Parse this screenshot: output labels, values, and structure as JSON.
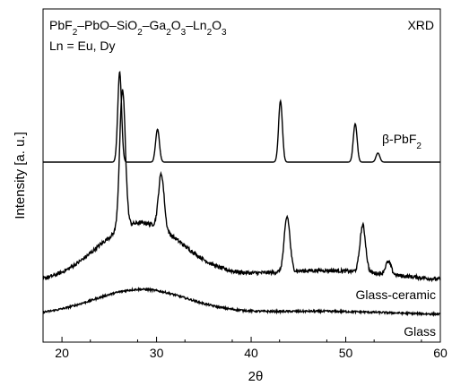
{
  "chart_data": {
    "type": "line",
    "title": "",
    "xlabel": "2θ",
    "ylabel": "Intensity [a. u.]",
    "xlim": [
      18,
      60
    ],
    "x_ticks": [
      20,
      30,
      40,
      50,
      60
    ],
    "y_ticks_shown": false,
    "grid": false,
    "annotations": {
      "composition": "PbF2–PbO–SiO2–Ga2O3–Ln2O3",
      "composition_parts": [
        {
          "t": "PbF",
          "sub": false
        },
        {
          "t": "2",
          "sub": true
        },
        {
          "t": "–PbO–SiO",
          "sub": false
        },
        {
          "t": "2",
          "sub": true
        },
        {
          "t": "–Ga",
          "sub": false
        },
        {
          "t": "2",
          "sub": true
        },
        {
          "t": "O",
          "sub": false
        },
        {
          "t": "3",
          "sub": true
        },
        {
          "t": "–Ln",
          "sub": false
        },
        {
          "t": "2",
          "sub": true
        },
        {
          "t": "O",
          "sub": false
        },
        {
          "t": "3",
          "sub": true
        }
      ],
      "ln_note": "Ln = Eu, Dy",
      "technique": "XRD"
    },
    "series": [
      {
        "name": "β-PbF2",
        "label_parts": [
          {
            "t": "β-PbF",
            "sub": false
          },
          {
            "t": "2",
            "sub": true
          }
        ],
        "baseline": 0.0,
        "broad": [],
        "peaks": [
          {
            "x": 26.1,
            "h": 0.99,
            "w": 0.2
          },
          {
            "x": 30.1,
            "h": 0.36,
            "w": 0.2
          },
          {
            "x": 43.1,
            "h": 0.67,
            "w": 0.2
          },
          {
            "x": 51.0,
            "h": 0.42,
            "w": 0.2
          },
          {
            "x": 53.4,
            "h": 0.1,
            "w": 0.2
          }
        ],
        "noise": 0.0
      },
      {
        "name": "Glass-ceramic",
        "label_parts": [
          {
            "t": "Glass-ceramic",
            "sub": false
          }
        ],
        "baseline": 0.0,
        "broad": [
          {
            "x": 28.3,
            "h": 0.38,
            "w": 4.5
          },
          {
            "x": 47.5,
            "h": 0.08,
            "w": 8.0
          }
        ],
        "peaks": [
          {
            "x": 26.4,
            "h": 0.88,
            "w": 0.3
          },
          {
            "x": 30.5,
            "h": 0.35,
            "w": 0.3
          },
          {
            "x": 43.8,
            "h": 0.35,
            "w": 0.3
          },
          {
            "x": 51.8,
            "h": 0.3,
            "w": 0.3
          },
          {
            "x": 54.5,
            "h": 0.08,
            "w": 0.3
          }
        ],
        "noise": 0.025
      },
      {
        "name": "Glass",
        "label_parts": [
          {
            "t": "Glass",
            "sub": false
          }
        ],
        "baseline": 0.0,
        "broad": [
          {
            "x": 28.3,
            "h": 0.26,
            "w": 5.0
          },
          {
            "x": 47.0,
            "h": 0.04,
            "w": 8.0
          }
        ],
        "peaks": [],
        "noise": 0.02
      }
    ]
  }
}
